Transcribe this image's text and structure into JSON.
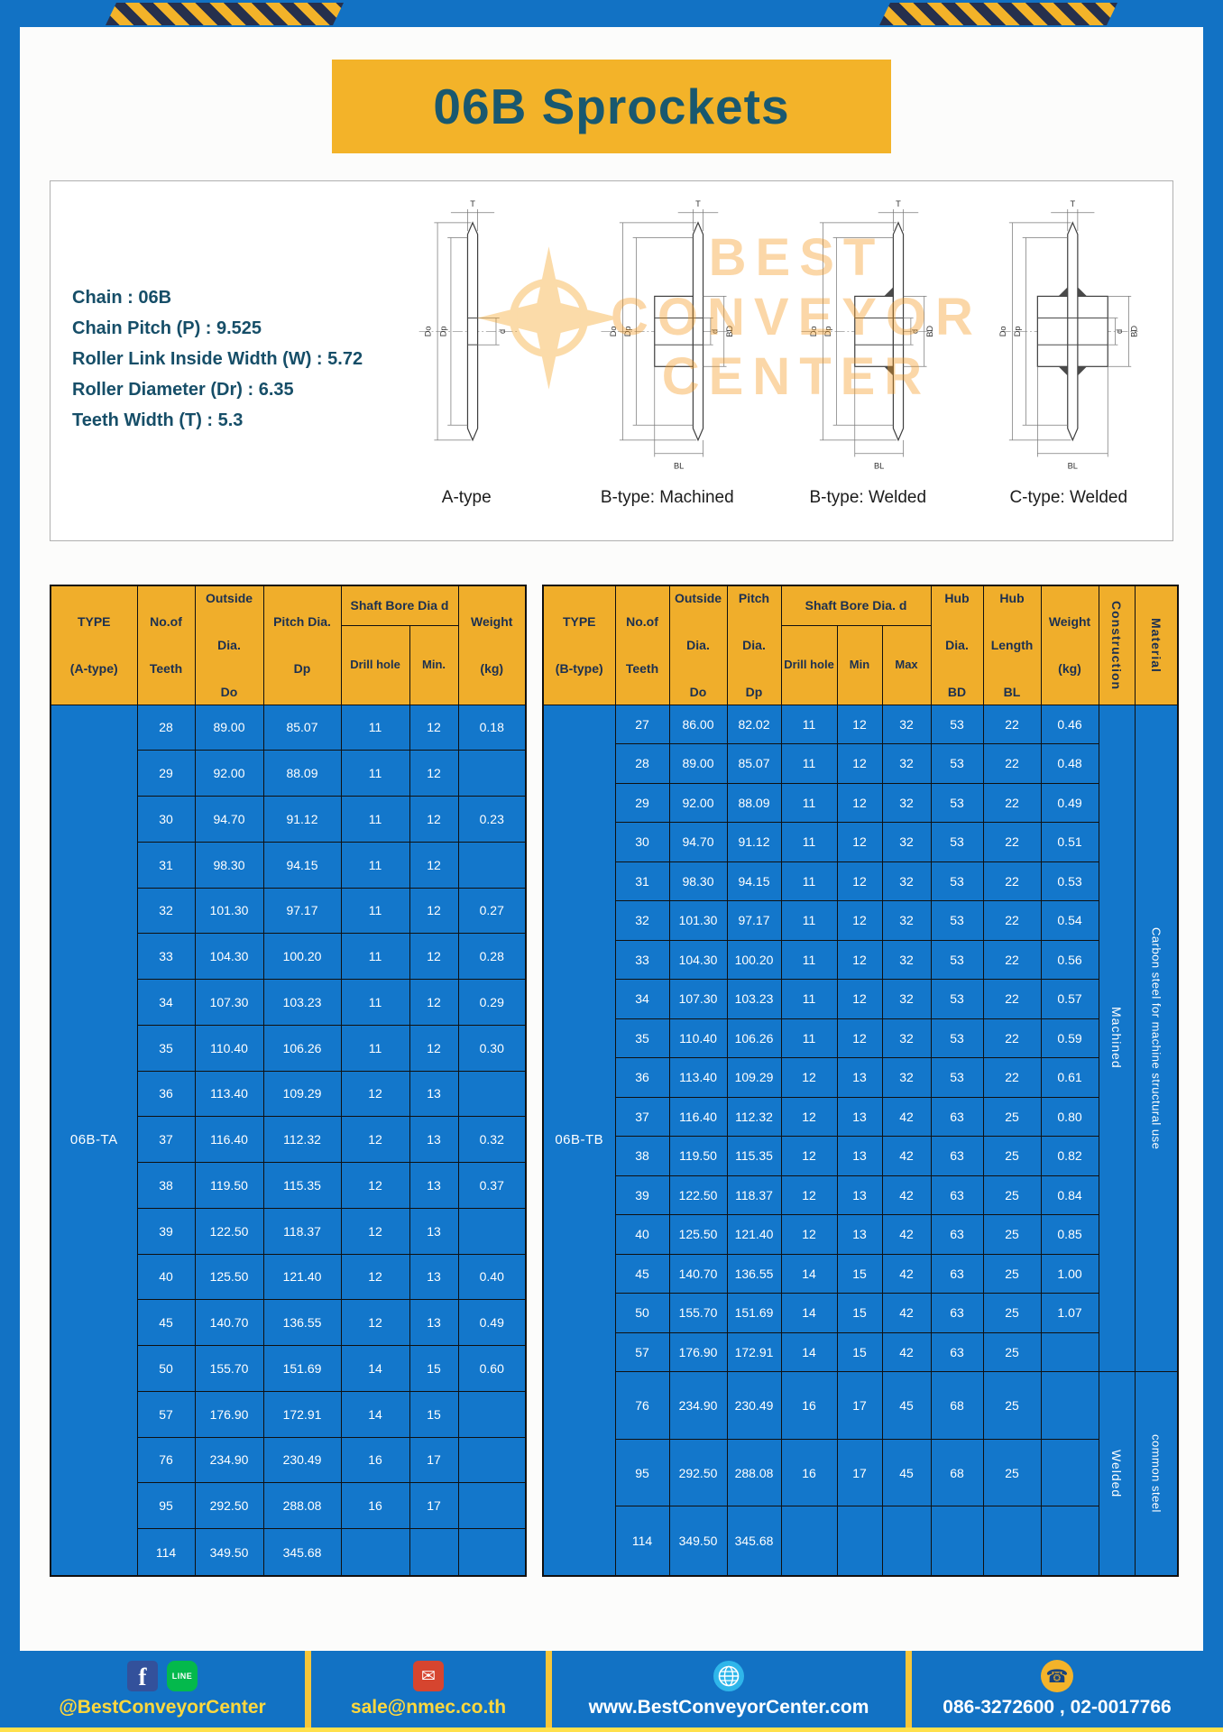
{
  "colors": {
    "page_blue": "#1272c4",
    "cell_blue": "#1377cb",
    "accent_yellow": "#f3b329",
    "title_teal": "#19586f"
  },
  "page": {
    "title": "06B Sprockets"
  },
  "specs": {
    "lines": [
      "Chain : 06B",
      "Chain Pitch (P) : 9.525",
      "Roller Link Inside Width (W) : 5.72",
      "Roller Diameter (Dr) : 6.35",
      "Teeth Width (T) : 5.3"
    ]
  },
  "watermark": {
    "lines": [
      "BEST",
      "CONVEYOR",
      "CENTER"
    ]
  },
  "diagrams": {
    "dims": {
      "t": "T",
      "do": "Do",
      "dp": "Dp",
      "d": "d",
      "bd": "BD",
      "bl": "BL"
    },
    "captions": [
      "A-type",
      "B-type: Machined",
      "B-type: Welded",
      "C-type: Welded"
    ]
  },
  "table_a": {
    "headers": {
      "type": "TYPE\n\n(A-type)",
      "teeth": "No.of\n\nTeeth",
      "outside": "Outside\n\nDia.\n\nDo",
      "pitch": "Pitch Dia.\n\nDp",
      "shaft_group": "Shaft Bore Dia d",
      "drill": "Drill hole",
      "min": "Min.",
      "weight": "Weight\n\n(kg)"
    },
    "type_value": "06B-TA",
    "rows": [
      [
        "28",
        "89.00",
        "85.07",
        "11",
        "12",
        "0.18"
      ],
      [
        "29",
        "92.00",
        "88.09",
        "11",
        "12",
        ""
      ],
      [
        "30",
        "94.70",
        "91.12",
        "11",
        "12",
        "0.23"
      ],
      [
        "31",
        "98.30",
        "94.15",
        "11",
        "12",
        ""
      ],
      [
        "32",
        "101.30",
        "97.17",
        "11",
        "12",
        "0.27"
      ],
      [
        "33",
        "104.30",
        "100.20",
        "11",
        "12",
        "0.28"
      ],
      [
        "34",
        "107.30",
        "103.23",
        "11",
        "12",
        "0.29"
      ],
      [
        "35",
        "110.40",
        "106.26",
        "11",
        "12",
        "0.30"
      ],
      [
        "36",
        "113.40",
        "109.29",
        "12",
        "13",
        ""
      ],
      [
        "37",
        "116.40",
        "112.32",
        "12",
        "13",
        "0.32"
      ],
      [
        "38",
        "119.50",
        "115.35",
        "12",
        "13",
        "0.37"
      ],
      [
        "39",
        "122.50",
        "118.37",
        "12",
        "13",
        ""
      ],
      [
        "40",
        "125.50",
        "121.40",
        "12",
        "13",
        "0.40"
      ],
      [
        "45",
        "140.70",
        "136.55",
        "12",
        "13",
        "0.49"
      ],
      [
        "50",
        "155.70",
        "151.69",
        "14",
        "15",
        "0.60"
      ],
      [
        "57",
        "176.90",
        "172.91",
        "14",
        "15",
        ""
      ],
      [
        "76",
        "234.90",
        "230.49",
        "16",
        "17",
        ""
      ],
      [
        "95",
        "292.50",
        "288.08",
        "16",
        "17",
        ""
      ],
      [
        "114",
        "349.50",
        "345.68",
        "",
        "",
        ""
      ]
    ]
  },
  "table_b": {
    "headers": {
      "type": "TYPE\n\n(B-type)",
      "teeth": "No.of\n\nTeeth",
      "outside": "Outside\n\nDia.\n\nDo",
      "pitch": "Pitch\n\nDia.\n\nDp",
      "shaft_group": "Shaft Bore Dia. d",
      "drill": "Drill hole",
      "min": "Min",
      "max": "Max",
      "hub_dia": "Hub\n\nDia.\n\nBD",
      "hub_len": "Hub\n\nLength\n\nBL",
      "weight": "Weight\n\n(kg)",
      "construction": "Construction",
      "material": "Material"
    },
    "type_value": "06B-TB",
    "construction": [
      {
        "label": "Machined",
        "span": 17
      },
      {
        "label": "Welded",
        "span": 3
      }
    ],
    "material": [
      {
        "label": "Carbon steel for machine structural use",
        "span": 17
      },
      {
        "label": "common steel",
        "span": 3
      }
    ],
    "rows": [
      [
        "27",
        "86.00",
        "82.02",
        "11",
        "12",
        "32",
        "53",
        "22",
        "0.46"
      ],
      [
        "28",
        "89.00",
        "85.07",
        "11",
        "12",
        "32",
        "53",
        "22",
        "0.48"
      ],
      [
        "29",
        "92.00",
        "88.09",
        "11",
        "12",
        "32",
        "53",
        "22",
        "0.49"
      ],
      [
        "30",
        "94.70",
        "91.12",
        "11",
        "12",
        "32",
        "53",
        "22",
        "0.51"
      ],
      [
        "31",
        "98.30",
        "94.15",
        "11",
        "12",
        "32",
        "53",
        "22",
        "0.53"
      ],
      [
        "32",
        "101.30",
        "97.17",
        "11",
        "12",
        "32",
        "53",
        "22",
        "0.54"
      ],
      [
        "33",
        "104.30",
        "100.20",
        "11",
        "12",
        "32",
        "53",
        "22",
        "0.56"
      ],
      [
        "34",
        "107.30",
        "103.23",
        "11",
        "12",
        "32",
        "53",
        "22",
        "0.57"
      ],
      [
        "35",
        "110.40",
        "106.26",
        "11",
        "12",
        "32",
        "53",
        "22",
        "0.59"
      ],
      [
        "36",
        "113.40",
        "109.29",
        "12",
        "13",
        "32",
        "53",
        "22",
        "0.61"
      ],
      [
        "37",
        "116.40",
        "112.32",
        "12",
        "13",
        "42",
        "63",
        "25",
        "0.80"
      ],
      [
        "38",
        "119.50",
        "115.35",
        "12",
        "13",
        "42",
        "63",
        "25",
        "0.82"
      ],
      [
        "39",
        "122.50",
        "118.37",
        "12",
        "13",
        "42",
        "63",
        "25",
        "0.84"
      ],
      [
        "40",
        "125.50",
        "121.40",
        "12",
        "13",
        "42",
        "63",
        "25",
        "0.85"
      ],
      [
        "45",
        "140.70",
        "136.55",
        "14",
        "15",
        "42",
        "63",
        "25",
        "1.00"
      ],
      [
        "50",
        "155.70",
        "151.69",
        "14",
        "15",
        "42",
        "63",
        "25",
        "1.07"
      ],
      [
        "57",
        "176.90",
        "172.91",
        "14",
        "15",
        "42",
        "63",
        "25",
        ""
      ],
      [
        "76",
        "234.90",
        "230.49",
        "16",
        "17",
        "45",
        "68",
        "25",
        ""
      ],
      [
        "95",
        "292.50",
        "288.08",
        "16",
        "17",
        "45",
        "68",
        "25",
        ""
      ],
      [
        "114",
        "349.50",
        "345.68",
        "",
        "",
        "",
        "",
        "",
        ""
      ]
    ]
  },
  "footer": {
    "sections": [
      {
        "label": "@BestConveyorCenter"
      },
      {
        "label": "sale@nmec.co.th"
      },
      {
        "label": "www.BestConveyorCenter.com"
      },
      {
        "label": "086-3272600 , 02-0017766"
      }
    ],
    "icon_glyphs": {
      "facebook": "f",
      "line": "LINE",
      "email": "✉",
      "phone": "☎"
    }
  }
}
